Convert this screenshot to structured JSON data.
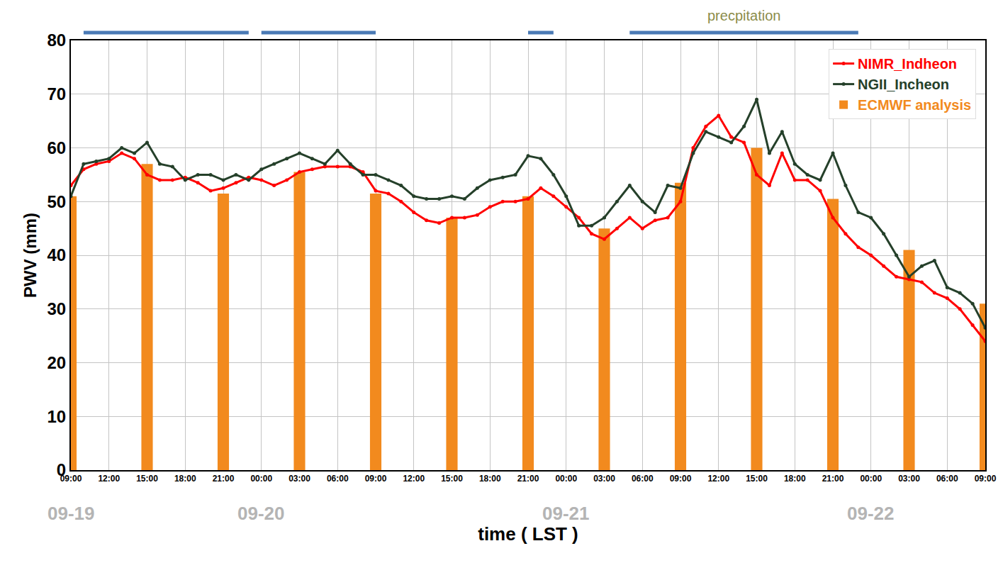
{
  "chart_data": {
    "type": "line",
    "x_label": "time ( LST )",
    "y_label": "PWV (mm)",
    "x": [
      0,
      1,
      2,
      3,
      4,
      5,
      6,
      7,
      8,
      9,
      10,
      11,
      12,
      13,
      14,
      15,
      16,
      17,
      18,
      19,
      20,
      21,
      22,
      23,
      24,
      25,
      26,
      27,
      28,
      29,
      30,
      31,
      32,
      33,
      34,
      35,
      36,
      37,
      38,
      39,
      40,
      41,
      42,
      43,
      44,
      45,
      46,
      47,
      48,
      49,
      50,
      51,
      52,
      53,
      54,
      55,
      56,
      57,
      58,
      59,
      60,
      61,
      62,
      63,
      64,
      65,
      66,
      67,
      68,
      69,
      70,
      71,
      72
    ],
    "xlim": [
      0,
      72
    ],
    "xticks": [
      {
        "value": 0,
        "label": "09:00"
      },
      {
        "value": 3,
        "label": "12:00"
      },
      {
        "value": 6,
        "label": "15:00"
      },
      {
        "value": 9,
        "label": "18:00"
      },
      {
        "value": 12,
        "label": "21:00"
      },
      {
        "value": 15,
        "label": "00:00"
      },
      {
        "value": 18,
        "label": "03:00"
      },
      {
        "value": 21,
        "label": "06:00"
      },
      {
        "value": 24,
        "label": "09:00"
      },
      {
        "value": 27,
        "label": "12:00"
      },
      {
        "value": 30,
        "label": "15:00"
      },
      {
        "value": 33,
        "label": "18:00"
      },
      {
        "value": 36,
        "label": "21:00"
      },
      {
        "value": 39,
        "label": "00:00"
      },
      {
        "value": 42,
        "label": "03:00"
      },
      {
        "value": 45,
        "label": "06:00"
      },
      {
        "value": 48,
        "label": "09:00"
      },
      {
        "value": 51,
        "label": "12:00"
      },
      {
        "value": 54,
        "label": "15:00"
      },
      {
        "value": 57,
        "label": "18:00"
      },
      {
        "value": 60,
        "label": "21:00"
      },
      {
        "value": 63,
        "label": "00:00"
      },
      {
        "value": 66,
        "label": "03:00"
      },
      {
        "value": 69,
        "label": "06:00"
      },
      {
        "value": 72,
        "label": "09:00"
      }
    ],
    "ylim": [
      0,
      80
    ],
    "yticks": [
      0,
      10,
      20,
      30,
      40,
      50,
      60,
      70,
      80
    ],
    "grid": true,
    "legend": "upper right",
    "series": [
      {
        "name": "NIMR_Indheon",
        "color": "#ff0000",
        "marker": "circle",
        "values": [
          53,
          56,
          57,
          57.5,
          59,
          58,
          55,
          54,
          54,
          54.5,
          53.5,
          52,
          52.5,
          53.5,
          54.5,
          54,
          53,
          54,
          55.5,
          56,
          56.5,
          56.5,
          56.5,
          55.5,
          52,
          51.5,
          50,
          48,
          46.5,
          46,
          47,
          47,
          47.5,
          49,
          50,
          50,
          50.5,
          52.5,
          51,
          49,
          47,
          44,
          43,
          45,
          47,
          45,
          46.5,
          47,
          50,
          60,
          64,
          66,
          62,
          61,
          55,
          53,
          59,
          54,
          54,
          52,
          47,
          44,
          41.5,
          40,
          38,
          36,
          35.5,
          35,
          33,
          32,
          30,
          27,
          24
        ]
      },
      {
        "name": "NGII_Incheon",
        "color": "#25402a",
        "marker": "circle",
        "values": [
          51,
          57,
          57.5,
          58,
          60,
          59,
          61,
          57,
          56.5,
          54,
          55,
          55,
          54,
          55,
          54,
          56,
          57,
          58,
          59,
          58,
          57,
          59.5,
          57,
          55,
          55,
          54,
          53,
          51,
          50.5,
          50.5,
          51,
          50.5,
          52.5,
          54,
          54.5,
          55,
          58.5,
          58,
          55,
          51,
          45.5,
          45.5,
          47,
          50,
          53,
          50,
          48,
          53,
          52.5,
          59,
          63,
          62,
          61,
          64,
          69,
          59,
          63,
          57,
          55,
          54,
          59,
          53,
          48,
          47,
          44,
          40,
          36,
          38,
          39,
          34,
          33,
          31,
          26.5
        ]
      },
      {
        "name": "ECMWF analysis",
        "type": "bar",
        "color": "#f28a1e",
        "values": [
          51,
          null,
          null,
          null,
          null,
          null,
          57,
          null,
          null,
          null,
          null,
          null,
          51.5,
          null,
          null,
          null,
          null,
          null,
          55.5,
          null,
          null,
          null,
          null,
          null,
          51.5,
          null,
          null,
          null,
          null,
          null,
          47,
          null,
          null,
          null,
          null,
          null,
          51,
          null,
          null,
          null,
          null,
          null,
          45,
          null,
          null,
          null,
          null,
          null,
          53.5,
          null,
          null,
          null,
          null,
          null,
          60,
          null,
          null,
          null,
          null,
          null,
          50.5,
          null,
          null,
          null,
          null,
          null,
          41,
          null,
          null,
          null,
          null,
          null,
          31
        ]
      }
    ],
    "annotations": [
      {
        "text": "09-19",
        "x": 0
      },
      {
        "text": "09-20",
        "x": 15
      },
      {
        "text": "09-21",
        "x": 39
      },
      {
        "text": "09-22",
        "x": 63
      }
    ],
    "precipitation": {
      "label": "precpitation",
      "color": "#4a7ab5",
      "periods": [
        [
          1,
          14
        ],
        [
          15,
          24
        ],
        [
          36,
          38
        ],
        [
          44,
          62
        ]
      ]
    }
  }
}
